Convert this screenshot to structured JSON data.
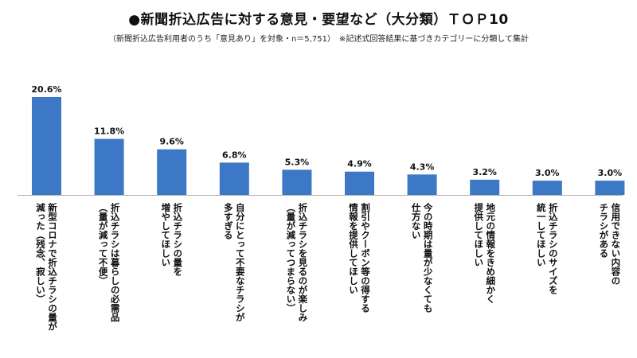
{
  "title": "●新聞折込広告に対する意見・要望など（大分類）ＴＯＰ10",
  "subtitle": "（新聞折込広告利用者のうち「意見あり」を対象・n＝5,751）　※記述式回答結果に基づきカテゴリーに分類して集計",
  "colors": {
    "bar": "#3c78c6",
    "axis": "#b0b0b0"
  },
  "chart_data": {
    "type": "bar",
    "title": "●新聞折込広告に対する意見・要望など（大分類）ＴＯＰ10",
    "subtitle": "（新聞折込広告利用者のうち「意見あり」を対象・n＝5,751）　※記述式回答結果に基づきカテゴリーに分類して集計",
    "unit": "%",
    "ylim": [
      0,
      20.6
    ],
    "grid": false,
    "categories": [
      [
        "新型コロナで折込チラシの量が",
        "減った（残念、寂しい）"
      ],
      [
        "折込チラシは暮らしの必需品",
        "（量が減って不便）"
      ],
      [
        "折込チラシの量を",
        "増やしてほしい"
      ],
      [
        "自分にとって不要なチラシが",
        "多すぎる"
      ],
      [
        "折込チラシを見るのが楽しみ",
        "（量が減ってつまらない）"
      ],
      [
        "割引やクーポン等の得する",
        "情報を提供してほしい"
      ],
      [
        "今の時期は量が少なくても",
        "仕方ない"
      ],
      [
        "地元の情報をきめ細かく",
        "提供してほしい"
      ],
      [
        "折込チラシのサイズを",
        "統一してほしい"
      ],
      [
        "信用できない内容の",
        "チラシがある"
      ]
    ],
    "values": [
      20.6,
      11.8,
      9.6,
      6.8,
      5.3,
      4.9,
      4.3,
      3.2,
      3.0,
      3.0
    ],
    "value_labels": [
      "20.6%",
      "11.8%",
      "9.6%",
      "6.8%",
      "5.3%",
      "4.9%",
      "4.3%",
      "3.2%",
      "3.0%",
      "3.0%"
    ]
  }
}
